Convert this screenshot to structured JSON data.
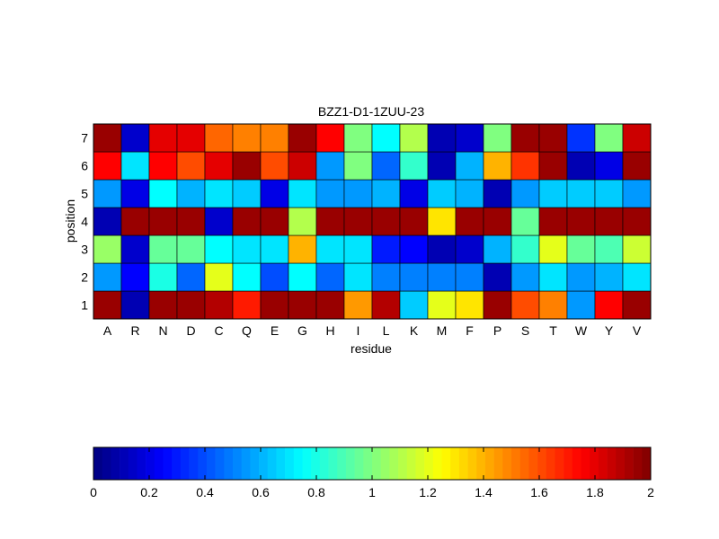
{
  "chart_data": {
    "type": "heatmap",
    "title": "BZZ1-D1-1ZUU-23",
    "xlabel": "residue",
    "ylabel": "position",
    "x_categories": [
      "A",
      "R",
      "N",
      "D",
      "C",
      "Q",
      "E",
      "G",
      "H",
      "I",
      "L",
      "K",
      "M",
      "F",
      "P",
      "S",
      "T",
      "W",
      "Y",
      "V"
    ],
    "y_categories": [
      "1",
      "2",
      "3",
      "4",
      "5",
      "6",
      "7"
    ],
    "colormap": "jet",
    "clim": [
      0,
      2
    ],
    "colorbar_ticks": [
      "0",
      "0.2",
      "0.4",
      "0.6",
      "0.8",
      "1",
      "1.2",
      "1.4",
      "1.6",
      "1.8",
      "2"
    ],
    "values": [
      [
        1.95,
        0.1,
        1.95,
        1.95,
        1.9,
        1.7,
        1.95,
        1.95,
        1.95,
        1.45,
        1.9,
        0.65,
        1.2,
        1.3,
        1.95,
        1.6,
        1.5,
        0.55,
        1.75,
        1.95
      ],
      [
        0.55,
        0.25,
        0.8,
        0.45,
        1.2,
        0.75,
        0.4,
        0.75,
        0.45,
        0.7,
        0.5,
        0.5,
        0.5,
        0.5,
        0.1,
        0.55,
        0.7,
        0.55,
        0.6,
        0.7
      ],
      [
        1.05,
        0.15,
        0.95,
        0.95,
        0.75,
        0.7,
        0.7,
        1.4,
        0.7,
        0.7,
        0.3,
        0.25,
        0.1,
        0.15,
        0.6,
        0.85,
        1.2,
        0.95,
        0.9,
        1.15
      ],
      [
        0.1,
        1.95,
        1.95,
        1.95,
        0.15,
        1.95,
        1.95,
        1.1,
        1.95,
        1.95,
        1.95,
        1.95,
        1.3,
        1.95,
        1.95,
        0.95,
        1.95,
        1.95,
        1.95,
        1.95
      ],
      [
        0.55,
        0.2,
        0.75,
        0.6,
        0.7,
        0.65,
        0.2,
        0.7,
        0.55,
        0.55,
        0.6,
        0.2,
        0.65,
        0.6,
        0.1,
        0.55,
        0.65,
        0.65,
        0.65,
        0.55
      ],
      [
        1.75,
        0.7,
        1.75,
        1.6,
        1.8,
        1.95,
        1.6,
        1.85,
        0.55,
        1.0,
        0.45,
        0.85,
        0.1,
        0.6,
        1.4,
        1.65,
        1.95,
        0.1,
        0.2,
        1.95
      ],
      [
        1.95,
        0.15,
        1.8,
        1.8,
        1.55,
        1.5,
        1.5,
        1.95,
        1.75,
        1.0,
        0.75,
        1.1,
        0.1,
        0.15,
        1.0,
        1.95,
        1.95,
        0.35,
        1.0,
        1.85
      ]
    ]
  }
}
